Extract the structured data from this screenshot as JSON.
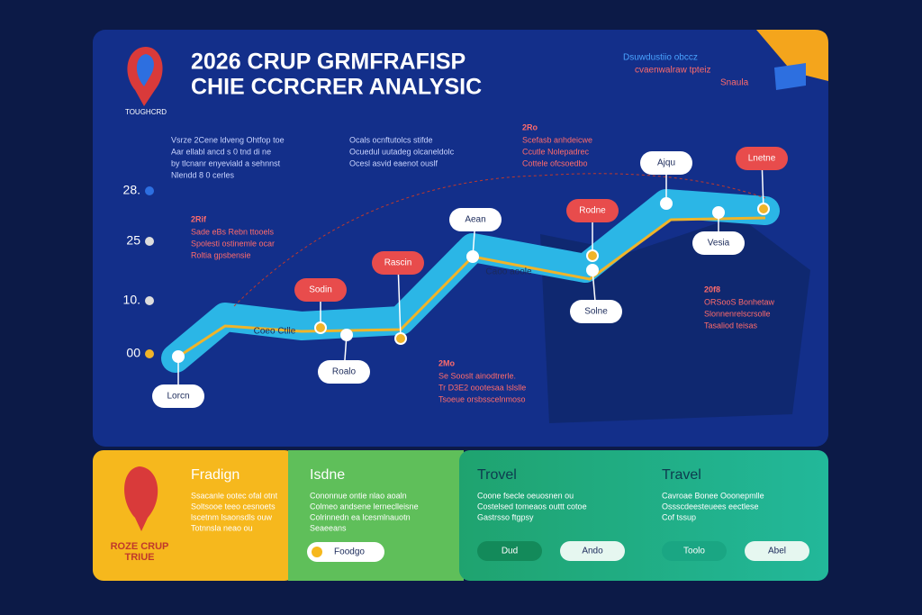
{
  "header": {
    "title": [
      "2026 CRUP GRMFRAFISP",
      "CHIE CCRCRER ANALYSIC"
    ],
    "logo_caption": "TOUGHCRD",
    "corner_note": [
      "Dsuwdustiio obccz",
      "cvaenwalraw tpteiz",
      "Snaula"
    ]
  },
  "axis_labels": [
    "28.",
    "25",
    "10.",
    "00"
  ],
  "notes": [
    {
      "lines": [
        "Vsrze 2Cene ldveng Ohtfop toe",
        "Aar ellabl ancd s 0 tnd di ne",
        "by tlcnanr enyeviald a sehnnst",
        "Nlendd 8 0 cerles"
      ]
    },
    {
      "lines": [
        "Ocals ocnftutolcs stifde",
        "Ocuedul uutadeg olcaneldolc",
        "Ocesl asvid eaenot ouslf"
      ]
    },
    {
      "head": "2Ro",
      "lines": [
        "Scefasb anhdeicwe",
        "Ccutle Nolepadrec",
        "Cottele ofcsoedbo"
      ]
    },
    {
      "head": "2Rif",
      "lines": [
        "Sade eBs Rebn ttooels",
        "Spolesti ostinemle ocar",
        "Roltia gpsbensie"
      ]
    },
    {
      "head": "2Mo",
      "lines": [
        "Se Sooslt ainodtrerle.",
        "Tr D3E2 oootesaa lslslle",
        "Tsoeue orsbsscelnmoso"
      ]
    },
    {
      "head": "20f8",
      "lines": [
        "ORSooS Bonhetaw",
        "Slonnenrelscrsolle",
        "Tasaliod teisas"
      ]
    }
  ],
  "route": {
    "labels": [
      "Lorcn",
      "Roalo",
      "Sodin",
      "Rascin",
      "Aean",
      "Rodne",
      "Solne",
      "Ajqu",
      "Lnetne",
      "Vesia"
    ],
    "midlabels": [
      "Coeo Ctlle",
      "Caoo aoole"
    ]
  },
  "panels": [
    {
      "title": "Fradign",
      "lines": [
        "Ssacanle ootec ofal otnt",
        "Soltsooe teeo cesnoets",
        "lscetnm lsaonsdls ouw",
        "Totnnsla neao ou"
      ],
      "logo": [
        "ROZE CRUP",
        "TRIUE"
      ]
    },
    {
      "title": "Isdne",
      "lines": [
        "Cononnue ontie nlao aoaln",
        "Colmeo andsene lerneclleisne",
        "Colrinnedn ea lcesmlnauotn",
        "Seaeeans"
      ],
      "button": "Foodgo"
    },
    {
      "title": "Trovel",
      "lines": [
        "Coone fsecle oeuosnen ou",
        "Costelsed tomeaos outtt cotoe",
        "Gastrsso ftgpsy"
      ],
      "buttons": [
        "Dud",
        "Ando"
      ]
    },
    {
      "title": "Travel",
      "lines": [
        "Cavroae Bonee Ooonepmlle",
        "Ossscdeesteuees eectlese",
        "Cof tssup"
      ],
      "buttons": [
        "Toolo",
        "Abel"
      ]
    }
  ]
}
